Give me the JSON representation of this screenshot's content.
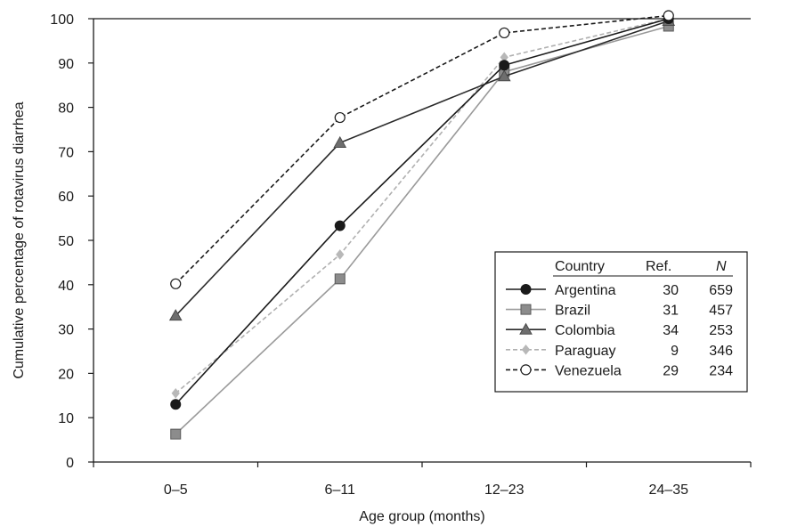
{
  "chart_data": {
    "type": "line",
    "title": "",
    "xlabel": "Age group (months)",
    "ylabel": "Cumulative percentage of rotavirus diarrhea",
    "ylim": [
      0,
      100
    ],
    "yticks": [
      0,
      10,
      20,
      30,
      40,
      50,
      60,
      70,
      80,
      90,
      100
    ],
    "categories": [
      "0–5",
      "6–11",
      "12–23",
      "24–35"
    ],
    "grid": false,
    "legend": {
      "placement": "right",
      "headers": [
        "Country",
        "Ref.",
        "N"
      ],
      "rows": [
        {
          "country": "Argentina",
          "ref": "30",
          "n": "659"
        },
        {
          "country": "Brazil",
          "ref": "31",
          "n": "457"
        },
        {
          "country": "Colombia",
          "ref": "34",
          "n": "253"
        },
        {
          "country": "Paraguay",
          "ref": "9",
          "n": "346"
        },
        {
          "country": "Venezuela",
          "ref": "29",
          "n": "234"
        }
      ]
    },
    "series": [
      {
        "name": "Argentina",
        "values": [
          13,
          53.3,
          89.5,
          100
        ],
        "color": "#1a1a1a",
        "marker": "circle-filled",
        "line": "solid"
      },
      {
        "name": "Brazil",
        "values": [
          6.3,
          41.3,
          88,
          98.3
        ],
        "color": "#9a9a9a",
        "marker": "square",
        "line": "solid"
      },
      {
        "name": "Colombia",
        "values": [
          33,
          72,
          87,
          99.5
        ],
        "color": "#2a2a2a",
        "marker": "triangle",
        "line": "solid"
      },
      {
        "name": "Paraguay",
        "values": [
          15.5,
          46.8,
          91.3,
          100
        ],
        "color": "#b0b0b0",
        "marker": "diamond",
        "line": "dashed"
      },
      {
        "name": "Venezuela",
        "values": [
          40.2,
          77.7,
          96.8,
          100.7
        ],
        "color": "#1a1a1a",
        "marker": "circle-open",
        "line": "dashed"
      }
    ]
  }
}
